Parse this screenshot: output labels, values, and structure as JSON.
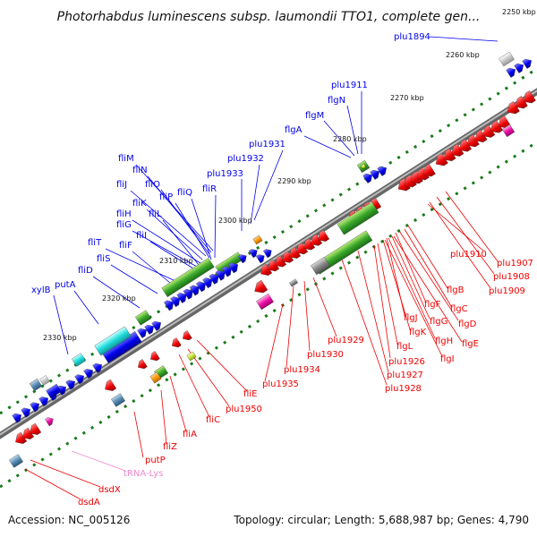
{
  "title": "Photorhabdus luminescens subsp. laumondii TTO1, complete gen...",
  "footer": {
    "accession": "Accession: NC_005126",
    "summary": "Topology: circular; Length: 5,688,987 bp; Genes: 4,790"
  },
  "colors": {
    "forward_gene": "#0000ee",
    "reverse_gene": "#ee0000",
    "trna": "#ee88cc",
    "backbone": "#888888",
    "tick": "#1a7a1a"
  },
  "scale_labels": [
    "2250 kbp",
    "2260 kbp",
    "2270 kbp",
    "2280 kbp",
    "2290 kbp",
    "2300 kbp",
    "2310 kbp",
    "2320 kbp",
    "2330 kbp"
  ],
  "forward_labels": [
    "plu1894",
    "plu1911",
    "flgN",
    "flgM",
    "flgA",
    "plu1931",
    "plu1932",
    "plu1933",
    "fliM",
    "fliN",
    "fliO",
    "fliJ",
    "fliP",
    "fliQ",
    "fliR",
    "fliK",
    "fliH",
    "fliL",
    "fliG",
    "fliI",
    "fliT",
    "fliF",
    "fliS",
    "fliD",
    "putA",
    "xylB"
  ],
  "reverse_labels": [
    "plu1910",
    "plu1907",
    "plu1908",
    "plu1909",
    "flgB",
    "flgC",
    "flgF",
    "flgD",
    "flgJ",
    "flgG",
    "flgK",
    "flgH",
    "flgE",
    "flgL",
    "flgI",
    "plu1929",
    "plu1926",
    "plu1930",
    "plu1927",
    "plu1928",
    "plu1934",
    "plu1935",
    "fliE",
    "plu1950",
    "fliC",
    "fliA",
    "fliZ",
    "putP",
    "dsdX",
    "dsdA"
  ],
  "trna_labels": [
    "tRNA-Lys"
  ]
}
